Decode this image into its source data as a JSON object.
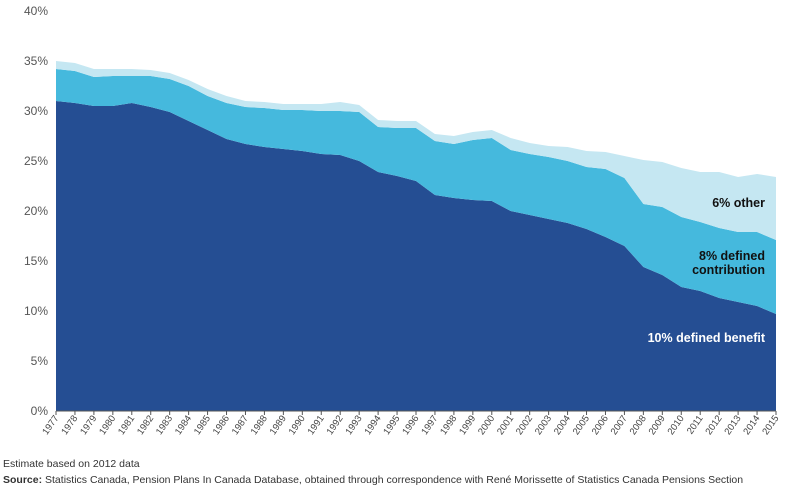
{
  "chart_data": {
    "type": "area",
    "stacked": true,
    "x": [
      "1977",
      "1978",
      "1979",
      "1980",
      "1981",
      "1982",
      "1983",
      "1984",
      "1985",
      "1986",
      "1987",
      "1988",
      "1989",
      "1990",
      "1991",
      "1992",
      "1993",
      "1994",
      "1995",
      "1996",
      "1997",
      "1998",
      "1999",
      "2000",
      "2001",
      "2002",
      "2003",
      "2004",
      "2005",
      "2006",
      "2007",
      "2008",
      "2009",
      "2010",
      "2011",
      "2012",
      "2013",
      "2014",
      "2015"
    ],
    "ylim": [
      0,
      40
    ],
    "yticks": [
      "0%",
      "5%",
      "10%",
      "15%",
      "20%",
      "25%",
      "30%",
      "35%",
      "40%"
    ],
    "grid": false,
    "series": [
      {
        "name": "10% defined benefit",
        "color": "#254e93",
        "values": [
          31.0,
          30.8,
          30.5,
          30.5,
          30.8,
          30.4,
          29.9,
          29.0,
          28.1,
          27.2,
          26.7,
          26.4,
          26.2,
          26.0,
          25.7,
          25.6,
          25.0,
          23.9,
          23.5,
          23.0,
          21.6,
          21.3,
          21.1,
          21.0,
          20.0,
          19.6,
          19.2,
          18.8,
          18.2,
          17.4,
          16.5,
          14.4,
          13.6,
          12.4,
          12.0,
          11.3,
          10.9,
          10.5,
          9.7
        ]
      },
      {
        "name": "8% defined contribution",
        "color": "#45b9dd",
        "values": [
          3.2,
          3.2,
          2.9,
          3.0,
          2.7,
          3.1,
          3.3,
          3.5,
          3.4,
          3.6,
          3.7,
          3.9,
          3.9,
          4.1,
          4.3,
          4.4,
          4.9,
          4.5,
          4.8,
          5.3,
          5.4,
          5.4,
          6.0,
          6.3,
          6.1,
          6.1,
          6.2,
          6.2,
          6.2,
          6.8,
          6.8,
          6.3,
          6.8,
          7.0,
          6.9,
          7.0,
          7.0,
          7.4,
          7.4
        ]
      },
      {
        "name": "6% other",
        "color": "#c5e7f2",
        "values": [
          0.8,
          0.8,
          0.8,
          0.7,
          0.7,
          0.6,
          0.6,
          0.6,
          0.7,
          0.7,
          0.6,
          0.6,
          0.6,
          0.6,
          0.7,
          0.9,
          0.7,
          0.7,
          0.7,
          0.7,
          0.7,
          0.8,
          0.8,
          0.8,
          1.2,
          1.1,
          1.1,
          1.4,
          1.6,
          1.7,
          2.2,
          4.4,
          4.5,
          4.9,
          5.0,
          5.6,
          5.5,
          5.8,
          6.3
        ]
      }
    ],
    "title": "",
    "xlabel": "",
    "ylabel": ""
  },
  "footer": {
    "note": "Estimate based on 2012 data",
    "source_label": "Source:",
    "source_text": " Statistics Canada, Pension Plans In Canada Database, obtained through correspondence with René Morissette of Statistics Canada Pensions Section"
  }
}
